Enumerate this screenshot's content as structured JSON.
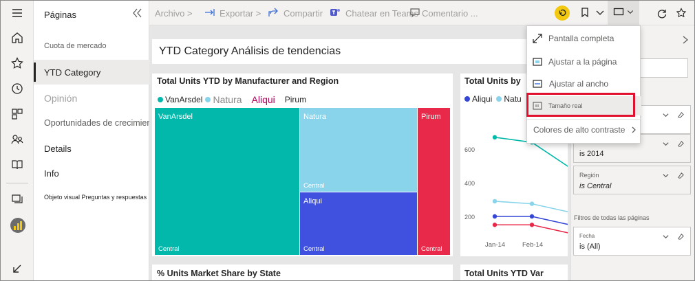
{
  "colors": {
    "accent": "#f2c811",
    "highlight": "#e0102e",
    "vanarsdel": "#01b8aa",
    "natura": "#8ad4eb",
    "aliqui": "#4051e0",
    "pirum": "#e8294a",
    "line_dark": "#3446d6"
  },
  "rail_icons": [
    "menu-icon",
    "home-icon",
    "favorites-icon",
    "recent-icon",
    "apps-icon",
    "shared-icon",
    "learn-icon",
    "workspaces-icon",
    "powerbi-icon",
    "expand-icon"
  ],
  "pages": {
    "title": "Páginas",
    "items": [
      {
        "label": "Cuota de mercado"
      },
      {
        "label": "YTD Category"
      },
      {
        "label": "Opinión"
      },
      {
        "label": "Oportunidades de crecimiento"
      },
      {
        "label": "Details"
      },
      {
        "label": "Info"
      },
      {
        "label": "Objeto visual Preguntas y respuestas"
      }
    ]
  },
  "toolbar": {
    "file": "Archivo >",
    "export": "Exportar >",
    "share": "Compartir",
    "teams": "Chatear en Teams",
    "comment": "Comentario ..."
  },
  "canvas": {
    "page_title": "YTD Category Análisis de tendencias",
    "treemap": {
      "title": "Total Units YTD by Manufacturer and Region",
      "legend": [
        "VanArsdel",
        "Natura",
        "Aliqui",
        "Pirum"
      ],
      "tiles": [
        {
          "name": "VanArsdel",
          "sub": "Central"
        },
        {
          "name": "Natura",
          "sub": "Central"
        },
        {
          "name": "Aliqui",
          "sub": "Central"
        },
        {
          "name": "Pirum",
          "sub": "Central"
        }
      ]
    },
    "linechart": {
      "title": "Total Units by",
      "legend": [
        "Aliqui",
        "Natu"
      ],
      "yticks": [
        "600",
        "400",
        "200"
      ],
      "xticks": [
        "Jan-14",
        "Feb-14"
      ]
    },
    "bottom_left_title": "% Units Market Share by State",
    "bottom_right_title": "Total Units YTD Var"
  },
  "chart_data": [
    {
      "type": "treemap",
      "title": "Total Units YTD by Manufacturer and Region",
      "series": [
        {
          "name": "VanArsdel",
          "regions": [
            "Central"
          ]
        },
        {
          "name": "Natura",
          "regions": [
            "Central"
          ]
        },
        {
          "name": "Aliqui",
          "regions": [
            "Central"
          ]
        },
        {
          "name": "Pirum",
          "regions": [
            "Central"
          ]
        }
      ]
    },
    {
      "type": "line",
      "title": "Total Units by",
      "x": [
        "Jan-14",
        "Feb-14"
      ],
      "yticks": [
        600,
        400,
        200
      ],
      "series": [
        {
          "name": "VanArsdel",
          "values": [
            670,
            640
          ]
        },
        {
          "name": "Natu",
          "values": [
            290,
            275
          ]
        },
        {
          "name": "Aliqui",
          "values": [
            200,
            200
          ]
        },
        {
          "name": "Pirum",
          "values": [
            150,
            150
          ]
        }
      ]
    }
  ],
  "view_menu": {
    "items": [
      {
        "label": "Pantalla completa",
        "icon": "fullscreen-icon"
      },
      {
        "label": "Ajustar a la página",
        "icon": "fit-page-icon"
      },
      {
        "label": "Ajustar al ancho",
        "icon": "fit-width-icon"
      },
      {
        "label": "Tamaño real",
        "icon": "actual-size-icon"
      },
      {
        "label": "Colores de alto contraste",
        "icon": "chevron-right-icon"
      }
    ]
  },
  "filters": {
    "card1": {
      "value": "is 2014"
    },
    "card2": {
      "title": "Región",
      "value": "is Central"
    },
    "all_pages_label": "Filtros de todas las páginas",
    "card3": {
      "title": "Fecha",
      "value": "is (All)"
    }
  }
}
